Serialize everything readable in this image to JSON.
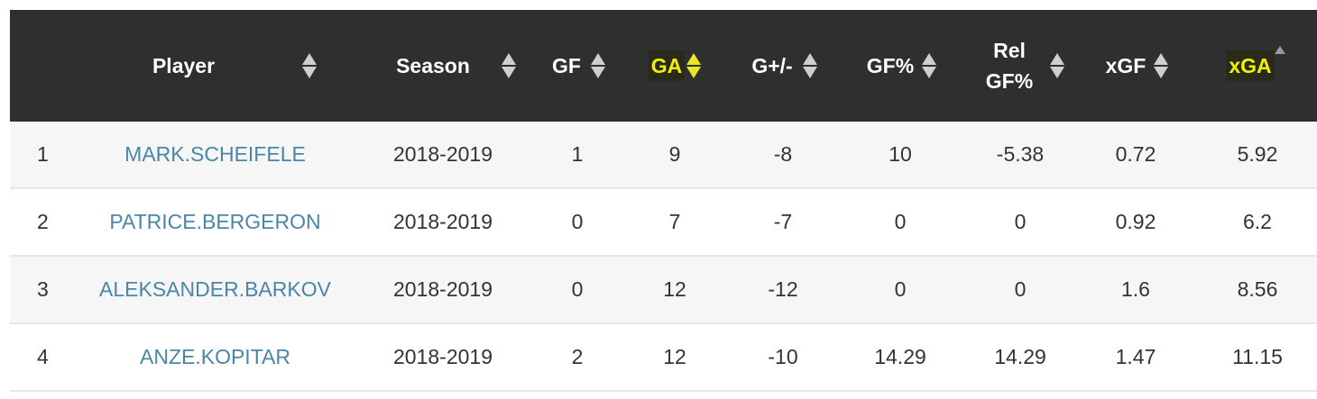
{
  "columns": [
    {
      "label": "",
      "sortable": false
    },
    {
      "label": "Player",
      "sortable": true
    },
    {
      "label": "Season",
      "sortable": true
    },
    {
      "label": "GF",
      "sortable": true
    },
    {
      "label": "GA",
      "sortable": true,
      "highlighted": true
    },
    {
      "label": "G+/-",
      "sortable": true
    },
    {
      "label": "GF%",
      "sortable": true
    },
    {
      "label": "Rel GF%",
      "sortable": true
    },
    {
      "label": "xGF",
      "sortable": true
    },
    {
      "label": "xGA",
      "sortable": true,
      "highlighted": true,
      "sort_state": "ascending"
    }
  ],
  "rows": [
    {
      "idx": "1",
      "player": "MARK.SCHEIFELE",
      "season": "2018-2019",
      "gf": "1",
      "ga": "9",
      "gpm": "-8",
      "gfpct": "10",
      "relgf": "-5.38",
      "xgf": "0.72",
      "xga": "5.92"
    },
    {
      "idx": "2",
      "player": "PATRICE.BERGERON",
      "season": "2018-2019",
      "gf": "0",
      "ga": "7",
      "gpm": "-7",
      "gfpct": "0",
      "relgf": "0",
      "xgf": "0.92",
      "xga": "6.2"
    },
    {
      "idx": "3",
      "player": "ALEKSANDER.BARKOV",
      "season": "2018-2019",
      "gf": "0",
      "ga": "12",
      "gpm": "-12",
      "gfpct": "0",
      "relgf": "0",
      "xgf": "1.6",
      "xga": "8.56"
    },
    {
      "idx": "4",
      "player": "ANZE.KOPITAR",
      "season": "2018-2019",
      "gf": "2",
      "ga": "12",
      "gpm": "-10",
      "gfpct": "14.29",
      "relgf": "14.29",
      "xgf": "1.47",
      "xga": "11.15"
    }
  ],
  "colors": {
    "header_bg": "#2f2f2f",
    "highlight": "#f2f200",
    "link": "#4a86a8"
  }
}
